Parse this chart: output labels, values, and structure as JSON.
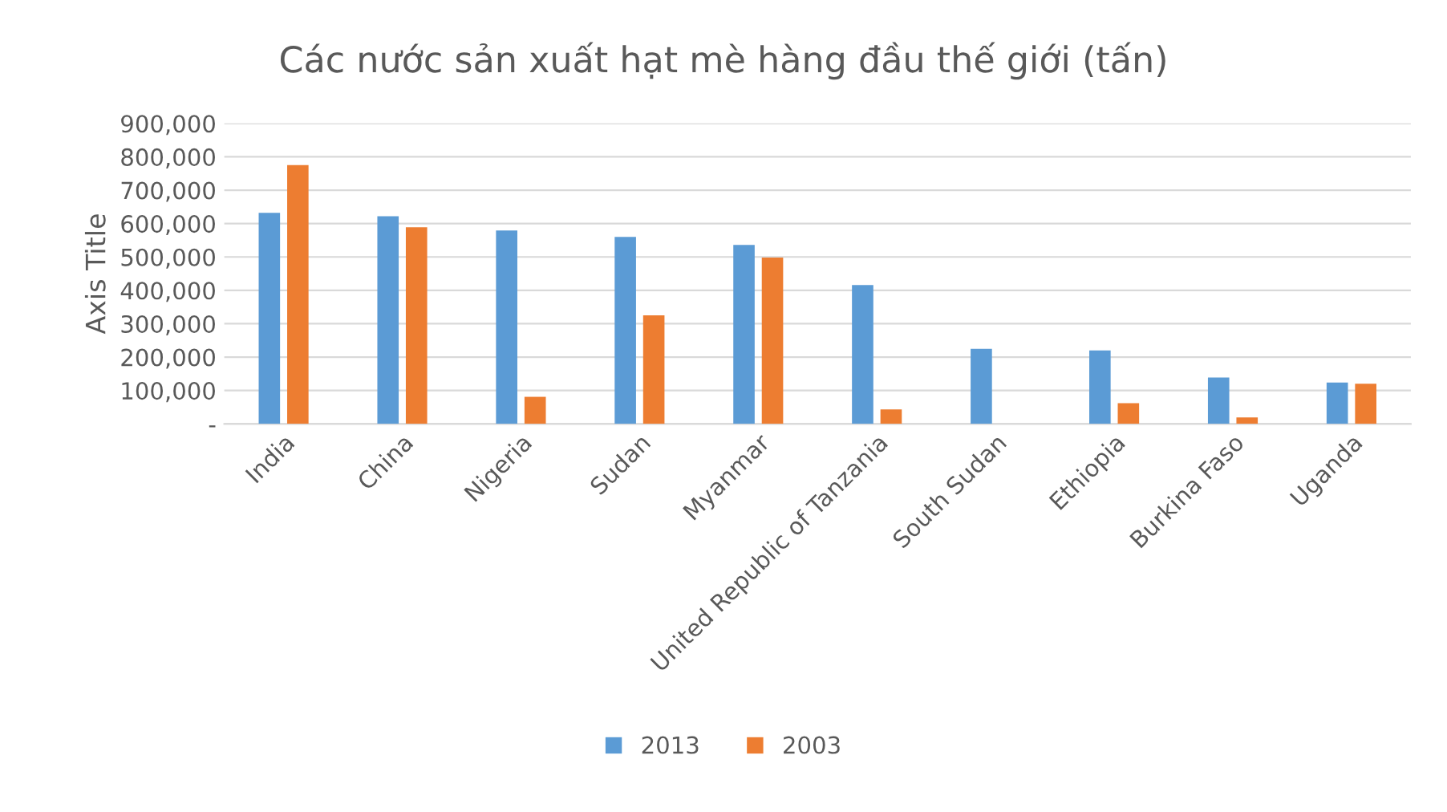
{
  "chart_data": {
    "type": "bar",
    "title": "Các nước sản xuất hạt mè hàng đầu thế giới (tấn)",
    "ylabel": "Axis Title",
    "categories": [
      "India",
      "China",
      "Nigeria",
      "Sudan",
      "Myanmar",
      "United Republic of Tanzania",
      "South Sudan",
      "Ethiopia",
      "Burkina Faso",
      "Uganda"
    ],
    "series": [
      {
        "name": "2013",
        "color": "#5b9bd5",
        "values": [
          632000,
          622000,
          579000,
          560000,
          536000,
          416000,
          225000,
          220000,
          139000,
          124000
        ]
      },
      {
        "name": "2003",
        "color": "#ed7d31",
        "values": [
          775000,
          589000,
          81000,
          325000,
          498000,
          43000,
          null,
          62000,
          19000,
          120000
        ]
      }
    ],
    "ylim": [
      0,
      900000
    ],
    "yticks": [
      {
        "value": 0,
        "label": "-"
      },
      {
        "value": 100000,
        "label": "100,000"
      },
      {
        "value": 200000,
        "label": "200,000"
      },
      {
        "value": 300000,
        "label": "300,000"
      },
      {
        "value": 400000,
        "label": "400,000"
      },
      {
        "value": 500000,
        "label": "500,000"
      },
      {
        "value": 600000,
        "label": "600,000"
      },
      {
        "value": 700000,
        "label": "700,000"
      },
      {
        "value": 800000,
        "label": "800,000"
      },
      {
        "value": 900000,
        "label": "900,000"
      }
    ],
    "grid": "y",
    "legend": "bottom"
  }
}
